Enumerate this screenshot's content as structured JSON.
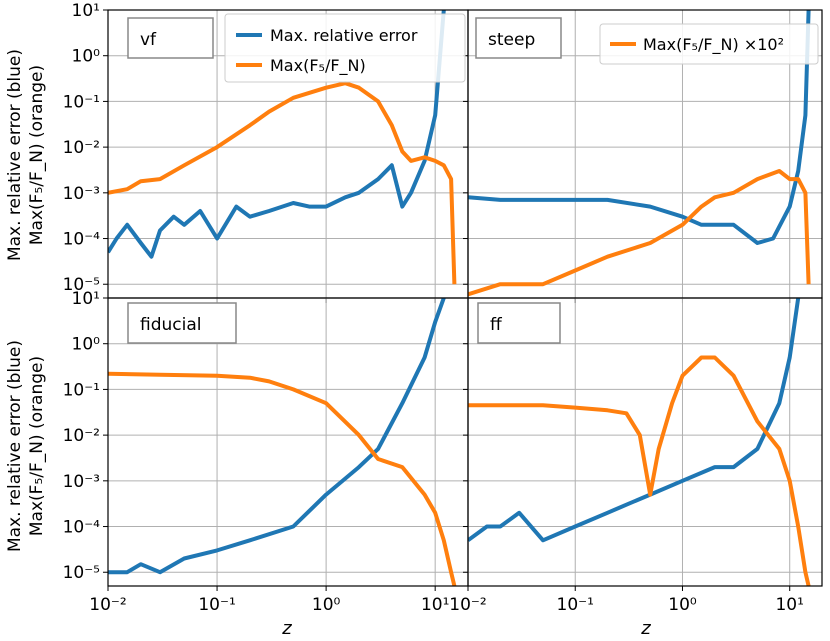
{
  "chart_data": [
    {
      "type": "line",
      "panel_label": "vf",
      "xscale": "log",
      "yscale": "log",
      "xlim": [
        0.01,
        20
      ],
      "ylim": [
        5e-06,
        10
      ],
      "grid": true,
      "legend": {
        "placement": "top-right",
        "entries": [
          "Max. relative error",
          "Max(F₅/F_N)"
        ]
      },
      "series": [
        {
          "name": "Max. relative error",
          "color": "#1f77b4",
          "x": [
            0.01,
            0.012,
            0.015,
            0.02,
            0.025,
            0.03,
            0.04,
            0.05,
            0.07,
            0.1,
            0.15,
            0.2,
            0.3,
            0.5,
            0.7,
            1.0,
            1.5,
            2.0,
            3.0,
            4.0,
            5.0,
            6.0,
            8.0,
            10.0,
            12.0
          ],
          "values": [
            5e-05,
            0.0001,
            0.0002,
            8e-05,
            4e-05,
            0.00015,
            0.0003,
            0.0002,
            0.0004,
            0.0001,
            0.0005,
            0.0003,
            0.0004,
            0.0006,
            0.0005,
            0.0005,
            0.0008,
            0.001,
            0.002,
            0.004,
            0.0005,
            0.001,
            0.005,
            0.05,
            10
          ]
        },
        {
          "name": "Max(F₅/F_N)",
          "color": "#ff7f0e",
          "x": [
            0.01,
            0.015,
            0.02,
            0.03,
            0.05,
            0.1,
            0.2,
            0.3,
            0.5,
            1.0,
            1.5,
            2.0,
            3.0,
            4.0,
            5.0,
            6.0,
            8.0,
            10.0,
            12.0,
            14.0,
            15.0
          ],
          "values": [
            0.001,
            0.0012,
            0.0018,
            0.002,
            0.004,
            0.01,
            0.03,
            0.06,
            0.12,
            0.2,
            0.25,
            0.2,
            0.1,
            0.03,
            0.008,
            0.005,
            0.006,
            0.005,
            0.004,
            0.002,
            1e-05
          ]
        }
      ]
    },
    {
      "type": "line",
      "panel_label": "steep",
      "xscale": "log",
      "yscale": "log",
      "xlim": [
        0.01,
        20
      ],
      "ylim": [
        5e-06,
        10
      ],
      "grid": true,
      "legend": {
        "placement": "top-right",
        "entries": [
          "Max(F₅/F_N) ×10²"
        ]
      },
      "series": [
        {
          "name": "Max. relative error",
          "color": "#1f77b4",
          "x": [
            0.01,
            0.02,
            0.05,
            0.1,
            0.2,
            0.5,
            1.0,
            1.5,
            2.0,
            3.0,
            5.0,
            7.0,
            10.0,
            12.0,
            14.0,
            15.0
          ],
          "values": [
            0.0008,
            0.0007,
            0.0007,
            0.0007,
            0.0007,
            0.0005,
            0.0003,
            0.0002,
            0.0002,
            0.0002,
            8e-05,
            0.0001,
            0.0005,
            0.003,
            0.05,
            10
          ]
        },
        {
          "name": "Max(F₅/F_N) ×10²",
          "color": "#ff7f0e",
          "x": [
            0.01,
            0.02,
            0.05,
            0.1,
            0.2,
            0.5,
            1.0,
            1.5,
            2.0,
            3.0,
            5.0,
            8.0,
            10.0,
            12.0,
            14.0,
            15.0
          ],
          "values": [
            6e-06,
            1e-05,
            1e-05,
            2e-05,
            4e-05,
            8e-05,
            0.0002,
            0.0005,
            0.0008,
            0.001,
            0.002,
            0.003,
            0.002,
            0.002,
            0.001,
            1e-05
          ]
        }
      ]
    },
    {
      "type": "line",
      "panel_label": "fiducial",
      "xscale": "log",
      "yscale": "log",
      "xlim": [
        0.01,
        20
      ],
      "ylim": [
        5e-06,
        10
      ],
      "grid": true,
      "series": [
        {
          "name": "Max. relative error",
          "color": "#1f77b4",
          "x": [
            0.01,
            0.015,
            0.02,
            0.03,
            0.05,
            0.1,
            0.2,
            0.5,
            1.0,
            2.0,
            3.0,
            5.0,
            8.0,
            10.0,
            12.0
          ],
          "values": [
            1e-05,
            1e-05,
            1.5e-05,
            1e-05,
            2e-05,
            3e-05,
            5e-05,
            0.0001,
            0.0005,
            0.002,
            0.005,
            0.05,
            0.5,
            3,
            10
          ]
        },
        {
          "name": "Max(F₅/F_N)",
          "color": "#ff7f0e",
          "x": [
            0.01,
            0.03,
            0.1,
            0.2,
            0.3,
            0.5,
            1.0,
            2.0,
            3.0,
            5.0,
            8.0,
            10.0,
            12.0,
            14.0,
            15.0
          ],
          "values": [
            0.22,
            0.21,
            0.2,
            0.18,
            0.15,
            0.1,
            0.05,
            0.01,
            0.003,
            0.002,
            0.0005,
            0.0002,
            5e-05,
            1e-05,
            5e-06
          ]
        }
      ]
    },
    {
      "type": "line",
      "panel_label": "ff",
      "xscale": "log",
      "yscale": "log",
      "xlim": [
        0.01,
        20
      ],
      "ylim": [
        5e-06,
        10
      ],
      "grid": true,
      "series": [
        {
          "name": "Max. relative error",
          "color": "#1f77b4",
          "x": [
            0.01,
            0.015,
            0.02,
            0.03,
            0.05,
            0.1,
            0.2,
            0.3,
            0.5,
            1.0,
            2.0,
            3.0,
            5.0,
            8.0,
            10.0,
            12.0
          ],
          "values": [
            5e-05,
            0.0001,
            0.0001,
            0.0002,
            5e-05,
            0.0001,
            0.0002,
            0.0003,
            0.0005,
            0.001,
            0.002,
            0.002,
            0.005,
            0.05,
            0.5,
            10
          ]
        },
        {
          "name": "Max(F₅/F_N)",
          "color": "#ff7f0e",
          "x": [
            0.01,
            0.05,
            0.1,
            0.2,
            0.3,
            0.4,
            0.5,
            0.6,
            0.8,
            1.0,
            1.5,
            2.0,
            3.0,
            5.0,
            8.0,
            10.0,
            12.0,
            14.0,
            15.0
          ],
          "values": [
            0.045,
            0.045,
            0.04,
            0.035,
            0.03,
            0.01,
            0.0005,
            0.005,
            0.05,
            0.2,
            0.5,
            0.5,
            0.2,
            0.02,
            0.005,
            0.001,
            0.0001,
            1e-05,
            5e-06
          ]
        }
      ]
    }
  ],
  "axes": {
    "xlabel": "z",
    "ylabel_line1": "Max. relative error (blue)",
    "ylabel_line2": "Max(F₅/F_N) (orange)",
    "yticks": [
      {
        "value": 1e-05,
        "label": "10⁻⁵"
      },
      {
        "value": 0.0001,
        "label": "10⁻⁴"
      },
      {
        "value": 0.001,
        "label": "10⁻³"
      },
      {
        "value": 0.01,
        "label": "10⁻²"
      },
      {
        "value": 0.1,
        "label": "10⁻¹"
      },
      {
        "value": 1,
        "label": "10⁰"
      },
      {
        "value": 10,
        "label": "10¹"
      }
    ],
    "xticks": [
      {
        "value": 0.01,
        "label": "10⁻²"
      },
      {
        "value": 0.1,
        "label": "10⁻¹"
      },
      {
        "value": 1,
        "label": "10⁰"
      },
      {
        "value": 10,
        "label": "10¹"
      }
    ]
  },
  "legend_vf": {
    "entry1": "Max. relative error",
    "entry2": "Max(F₅/F_N)"
  },
  "legend_steep": {
    "entry1": "Max(F₅/F_N) ×10²"
  }
}
